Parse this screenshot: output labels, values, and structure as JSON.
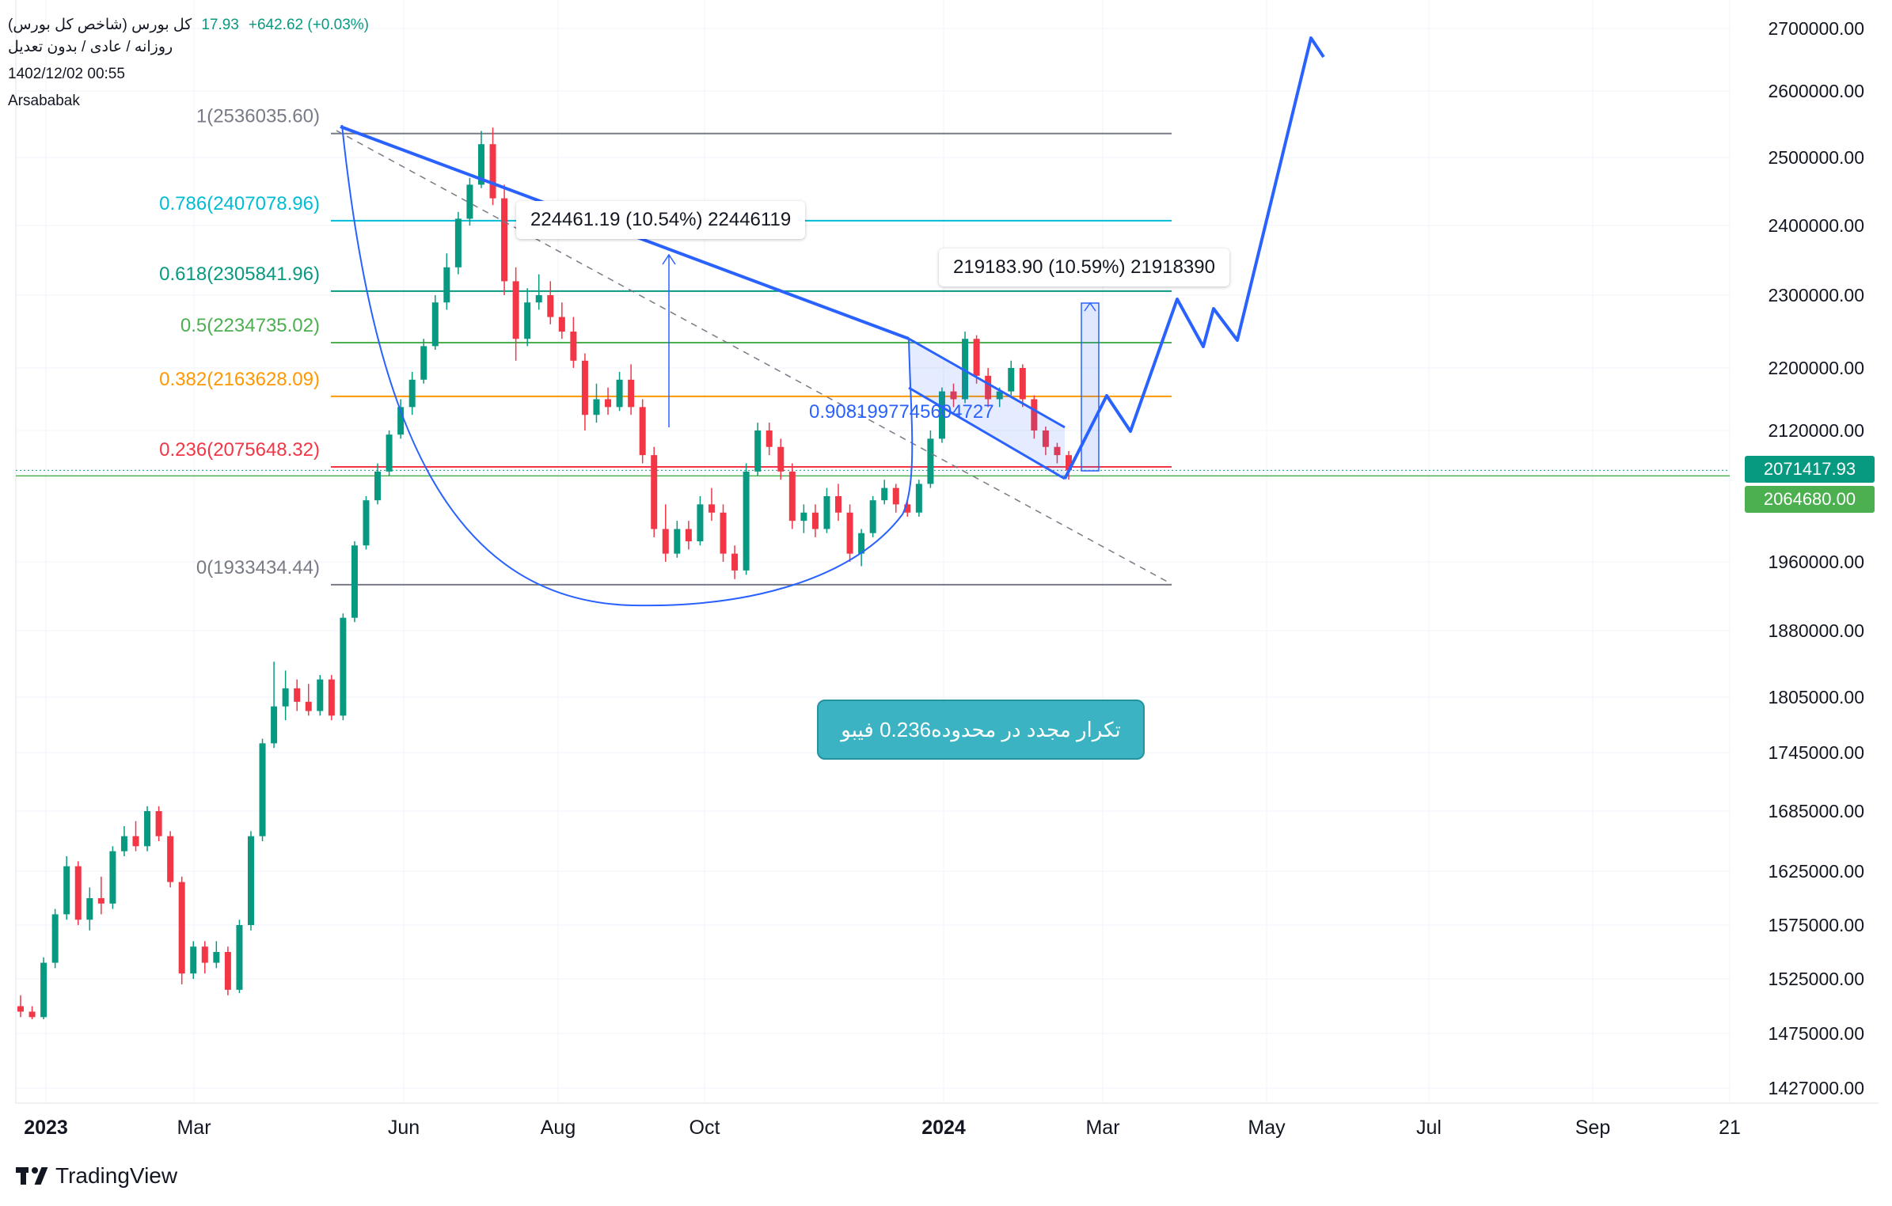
{
  "header": {
    "symbol_name": "کل بورس (شاخص کل بورس)",
    "price_partial": "17.93",
    "change": "+642.62 (+0.03%)",
    "interval": "روزانه / عادی / بدون تعدیل",
    "datetime": "1402/12/02 00:55",
    "author": "Arsababak"
  },
  "price_tags": {
    "last": "2071417.93",
    "prev": "2064680.00",
    "last_color": "#089981",
    "prev_color": "#4caf50"
  },
  "callout": {
    "text": "تکرار مجدد در محدوده0.236 فیبو"
  },
  "measures": [
    {
      "text": "224461.19 (10.54%) 22446119"
    },
    {
      "text": "219183.90 (10.59%) 21918390"
    }
  ],
  "channel_label": "0.9081997745604727",
  "logo": {
    "text": "TradingView"
  },
  "chart_data": {
    "type": "candlestick",
    "y_axis_ticks": [
      "2700000.00",
      "2600000.00",
      "2500000.00",
      "2400000.00",
      "2300000.00",
      "2200000.00",
      "2120000.00",
      "1960000.00",
      "1880000.00",
      "1805000.00",
      "1745000.00",
      "1685000.00",
      "1625000.00",
      "1575000.00",
      "1525000.00",
      "1475000.00",
      "1427000.00"
    ],
    "x_axis_ticks": [
      "2023",
      "Mar",
      "Jun",
      "Aug",
      "Oct",
      "2024",
      "Mar",
      "May",
      "Jul",
      "Sep",
      "21"
    ],
    "fib_levels": [
      {
        "ratio": "1",
        "value": 2536035.6,
        "label": "1(2536035.60)",
        "color": "#787b86"
      },
      {
        "ratio": "0.786",
        "value": 2407078.96,
        "label": "0.786(2407078.96)",
        "color": "#00bcd4"
      },
      {
        "ratio": "0.618",
        "value": 2305841.96,
        "label": "0.618(2305841.96)",
        "color": "#089981"
      },
      {
        "ratio": "0.5",
        "value": 2234735.02,
        "label": "0.5(2234735.02)",
        "color": "#4caf50"
      },
      {
        "ratio": "0.382",
        "value": 2163628.09,
        "label": "0.382(2163628.09)",
        "color": "#ff9800"
      },
      {
        "ratio": "0.236",
        "value": 2075648.32,
        "label": "0.236(2075648.32)",
        "color": "#f23645"
      },
      {
        "ratio": "0",
        "value": 1933434.44,
        "label": "0(1933434.44)",
        "color": "#787b86"
      }
    ],
    "candles": [
      [
        1500000,
        1510000,
        1490000,
        1495000
      ],
      [
        1495000,
        1500000,
        1488000,
        1490000
      ],
      [
        1490000,
        1545000,
        1488000,
        1540000
      ],
      [
        1540000,
        1590000,
        1535000,
        1585000
      ],
      [
        1585000,
        1640000,
        1580000,
        1630000
      ],
      [
        1630000,
        1635000,
        1575000,
        1580000
      ],
      [
        1580000,
        1610000,
        1570000,
        1600000
      ],
      [
        1600000,
        1620000,
        1585000,
        1595000
      ],
      [
        1595000,
        1650000,
        1590000,
        1645000
      ],
      [
        1645000,
        1670000,
        1640000,
        1660000
      ],
      [
        1660000,
        1675000,
        1645000,
        1650000
      ],
      [
        1650000,
        1690000,
        1645000,
        1685000
      ],
      [
        1685000,
        1690000,
        1655000,
        1660000
      ],
      [
        1660000,
        1665000,
        1610000,
        1615000
      ],
      [
        1615000,
        1620000,
        1520000,
        1530000
      ],
      [
        1530000,
        1560000,
        1525000,
        1555000
      ],
      [
        1555000,
        1560000,
        1530000,
        1540000
      ],
      [
        1540000,
        1560000,
        1535000,
        1550000
      ],
      [
        1550000,
        1555000,
        1510000,
        1515000
      ],
      [
        1515000,
        1580000,
        1512000,
        1575000
      ],
      [
        1575000,
        1665000,
        1570000,
        1660000
      ],
      [
        1660000,
        1760000,
        1655000,
        1755000
      ],
      [
        1755000,
        1845000,
        1750000,
        1795000
      ],
      [
        1795000,
        1835000,
        1780000,
        1815000
      ],
      [
        1815000,
        1825000,
        1790000,
        1800000
      ],
      [
        1800000,
        1820000,
        1785000,
        1790000
      ],
      [
        1790000,
        1830000,
        1785000,
        1825000
      ],
      [
        1825000,
        1830000,
        1780000,
        1785000
      ],
      [
        1785000,
        1900000,
        1780000,
        1895000
      ],
      [
        1895000,
        1985000,
        1890000,
        1980000
      ],
      [
        1980000,
        2040000,
        1975000,
        2035000
      ],
      [
        2035000,
        2080000,
        2030000,
        2070000
      ],
      [
        2070000,
        2120000,
        2065000,
        2115000
      ],
      [
        2115000,
        2160000,
        2110000,
        2150000
      ],
      [
        2150000,
        2195000,
        2140000,
        2185000
      ],
      [
        2185000,
        2240000,
        2180000,
        2230000
      ],
      [
        2230000,
        2300000,
        2225000,
        2290000
      ],
      [
        2290000,
        2360000,
        2280000,
        2340000
      ],
      [
        2340000,
        2420000,
        2330000,
        2410000
      ],
      [
        2410000,
        2470000,
        2400000,
        2460000
      ],
      [
        2460000,
        2540000,
        2455000,
        2520000
      ],
      [
        2520000,
        2545000,
        2430000,
        2440000
      ],
      [
        2440000,
        2460000,
        2300000,
        2320000
      ],
      [
        2320000,
        2340000,
        2210000,
        2240000
      ],
      [
        2240000,
        2310000,
        2230000,
        2290000
      ],
      [
        2290000,
        2330000,
        2280000,
        2300000
      ],
      [
        2300000,
        2320000,
        2260000,
        2270000
      ],
      [
        2270000,
        2290000,
        2240000,
        2250000
      ],
      [
        2250000,
        2270000,
        2200000,
        2210000
      ],
      [
        2210000,
        2220000,
        2120000,
        2140000
      ],
      [
        2140000,
        2180000,
        2130000,
        2160000
      ],
      [
        2160000,
        2175000,
        2140000,
        2150000
      ],
      [
        2150000,
        2195000,
        2145000,
        2185000
      ],
      [
        2185000,
        2205000,
        2140000,
        2150000
      ],
      [
        2150000,
        2160000,
        2080000,
        2090000
      ],
      [
        2090000,
        2100000,
        1990000,
        2000000
      ],
      [
        2000000,
        2030000,
        1960000,
        1970000
      ],
      [
        1970000,
        2010000,
        1965000,
        2000000
      ],
      [
        2000000,
        2010000,
        1975000,
        1985000
      ],
      [
        1985000,
        2040000,
        1980000,
        2030000
      ],
      [
        2030000,
        2050000,
        2010000,
        2020000
      ],
      [
        2020000,
        2030000,
        1960000,
        1970000
      ],
      [
        1970000,
        1980000,
        1940000,
        1950000
      ],
      [
        1950000,
        2080000,
        1945000,
        2070000
      ],
      [
        2070000,
        2130000,
        2065000,
        2120000
      ],
      [
        2120000,
        2130000,
        2090000,
        2100000
      ],
      [
        2100000,
        2110000,
        2060000,
        2070000
      ],
      [
        2070000,
        2080000,
        2000000,
        2010000
      ],
      [
        2010000,
        2030000,
        1995000,
        2020000
      ],
      [
        2020000,
        2030000,
        1990000,
        2000000
      ],
      [
        2000000,
        2050000,
        1995000,
        2040000
      ],
      [
        2040000,
        2055000,
        2010000,
        2020000
      ],
      [
        2020000,
        2030000,
        1960000,
        1970000
      ],
      [
        1970000,
        2000000,
        1955000,
        1995000
      ],
      [
        1995000,
        2040000,
        1990000,
        2035000
      ],
      [
        2035000,
        2060000,
        2030000,
        2050000
      ],
      [
        2050000,
        2055000,
        2020000,
        2030000
      ],
      [
        2030000,
        2035000,
        2015000,
        2020000
      ],
      [
        2020000,
        2060000,
        2015000,
        2055000
      ],
      [
        2055000,
        2120000,
        2050000,
        2110000
      ],
      [
        2110000,
        2175000,
        2105000,
        2170000
      ],
      [
        2170000,
        2180000,
        2150000,
        2160000
      ],
      [
        2160000,
        2250000,
        2155000,
        2240000
      ],
      [
        2240000,
        2245000,
        2180000,
        2190000
      ],
      [
        2190000,
        2200000,
        2150000,
        2160000
      ],
      [
        2160000,
        2175000,
        2150000,
        2170000
      ],
      [
        2170000,
        2210000,
        2165000,
        2200000
      ],
      [
        2200000,
        2205000,
        2150000,
        2160000
      ],
      [
        2160000,
        2165000,
        2110000,
        2120000
      ],
      [
        2120000,
        2125000,
        2090000,
        2100000
      ],
      [
        2100000,
        2105000,
        2080000,
        2090000
      ],
      [
        2090000,
        2095000,
        2060000,
        2071418
      ]
    ]
  }
}
